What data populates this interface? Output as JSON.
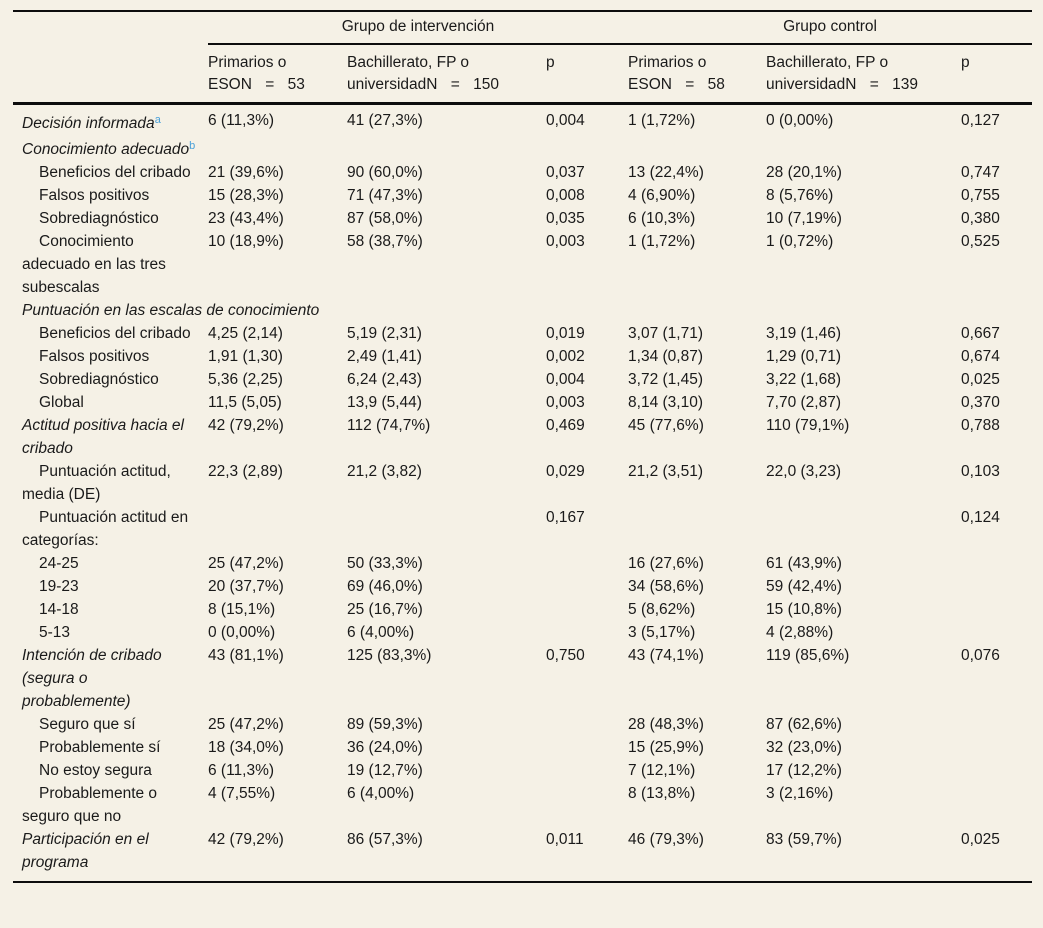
{
  "table": {
    "groups": [
      {
        "title": "Grupo de intervención"
      },
      {
        "title": "Grupo control"
      }
    ],
    "columns": [
      {
        "line1": "Primarios o",
        "line2": "ESON = 53"
      },
      {
        "line1": "Bachillerato, FP o",
        "line2": "universidadN = 150"
      },
      {
        "label": "p"
      },
      {
        "line1": "Primarios o",
        "line2": "ESON = 58"
      },
      {
        "line1": "Bachillerato, FP o",
        "line2": "universidadN = 139"
      },
      {
        "label": "p"
      }
    ],
    "rows": [
      {
        "label": "Decisión informada",
        "sup": "a",
        "italic": true,
        "indent": false,
        "span": false,
        "cells": [
          "6 (11,3%)",
          "41 (27,3%)",
          "0,004",
          "1 (1,72%)",
          "0 (0,00%)",
          "0,127"
        ]
      },
      {
        "label": "Conocimiento adecuado",
        "sup": "b",
        "italic": true,
        "indent": false,
        "span": false,
        "cells": [
          "",
          "",
          "",
          "",
          "",
          ""
        ]
      },
      {
        "label": "Beneficios del cribado",
        "italic": false,
        "indent": true,
        "span": false,
        "cells": [
          "21 (39,6%)",
          "90 (60,0%)",
          "0,037",
          "13 (22,4%)",
          "28 (20,1%)",
          "0,747"
        ]
      },
      {
        "label": "Falsos positivos",
        "italic": false,
        "indent": true,
        "span": false,
        "cells": [
          "15 (28,3%)",
          "71 (47,3%)",
          "0,008",
          "4 (6,90%)",
          "8 (5,76%)",
          "0,755"
        ]
      },
      {
        "label": "Sobrediagnóstico",
        "italic": false,
        "indent": true,
        "span": false,
        "cells": [
          "23 (43,4%)",
          "87 (58,0%)",
          "0,035",
          "6 (10,3%)",
          "10 (7,19%)",
          "0,380"
        ]
      },
      {
        "label": "Conocimiento adecuado en las tres subescalas",
        "italic": false,
        "indent": true,
        "span": false,
        "cells": [
          "10 (18,9%)",
          "58 (38,7%)",
          "0,003",
          "1 (1,72%)",
          "1 (0,72%)",
          "0,525"
        ]
      },
      {
        "label": "Puntuación en las escalas de conocimiento",
        "italic": true,
        "indent": false,
        "span": true,
        "cells": [
          "",
          "",
          "",
          "",
          "",
          ""
        ]
      },
      {
        "label": "Beneficios del cribado",
        "italic": false,
        "indent": true,
        "span": false,
        "cells": [
          "4,25 (2,14)",
          "5,19 (2,31)",
          "0,019",
          "3,07 (1,71)",
          "3,19 (1,46)",
          "0,667"
        ]
      },
      {
        "label": "Falsos positivos",
        "italic": false,
        "indent": true,
        "span": false,
        "cells": [
          "1,91 (1,30)",
          "2,49 (1,41)",
          "0,002",
          "1,34 (0,87)",
          "1,29 (0,71)",
          "0,674"
        ]
      },
      {
        "label": "Sobrediagnóstico",
        "italic": false,
        "indent": true,
        "span": false,
        "cells": [
          "5,36 (2,25)",
          "6,24 (2,43)",
          "0,004",
          "3,72 (1,45)",
          "3,22 (1,68)",
          "0,025"
        ]
      },
      {
        "label": "Global",
        "italic": false,
        "indent": true,
        "span": false,
        "cells": [
          "11,5 (5,05)",
          "13,9 (5,44)",
          "0,003",
          "8,14 (3,10)",
          "7,70 (2,87)",
          "0,370"
        ]
      },
      {
        "label": "Actitud positiva hacia el cribado",
        "italic": true,
        "indent": false,
        "span": false,
        "cells": [
          "42 (79,2%)",
          "112 (74,7%)",
          "0,469",
          "45 (77,6%)",
          "110 (79,1%)",
          "0,788"
        ]
      },
      {
        "label": "Puntuación actitud, media (DE)",
        "italic": false,
        "indent": true,
        "span": false,
        "cells": [
          "22,3 (2,89)",
          "21,2 (3,82)",
          "0,029",
          "21,2 (3,51)",
          "22,0 (3,23)",
          "0,103"
        ]
      },
      {
        "label": "Puntuación actitud en categorías:",
        "italic": false,
        "indent": true,
        "span": false,
        "cells": [
          "",
          "",
          "0,167",
          "",
          "",
          "0,124"
        ]
      },
      {
        "label": "24-25",
        "italic": false,
        "indent": true,
        "span": false,
        "cells": [
          "25 (47,2%)",
          "50 (33,3%)",
          "",
          "16 (27,6%)",
          "61 (43,9%)",
          ""
        ]
      },
      {
        "label": "19-23",
        "italic": false,
        "indent": true,
        "span": false,
        "cells": [
          "20 (37,7%)",
          "69 (46,0%)",
          "",
          "34 (58,6%)",
          "59 (42,4%)",
          ""
        ]
      },
      {
        "label": "14-18",
        "italic": false,
        "indent": true,
        "span": false,
        "cells": [
          "8 (15,1%)",
          "25 (16,7%)",
          "",
          "5 (8,62%)",
          "15 (10,8%)",
          ""
        ]
      },
      {
        "label": "5-13",
        "italic": false,
        "indent": true,
        "span": false,
        "cells": [
          "0 (0,00%)",
          "6 (4,00%)",
          "",
          "3 (5,17%)",
          "4 (2,88%)",
          ""
        ]
      },
      {
        "label": "Intención de cribado (segura o probablemente)",
        "italic": true,
        "indent": false,
        "span": false,
        "cells": [
          "43 (81,1%)",
          "125 (83,3%)",
          "0,750",
          "43 (74,1%)",
          "119 (85,6%)",
          "0,076"
        ]
      },
      {
        "label": "Seguro que sí",
        "italic": false,
        "indent": true,
        "span": false,
        "cells": [
          "25 (47,2%)",
          "89 (59,3%)",
          "",
          "28 (48,3%)",
          "87 (62,6%)",
          ""
        ]
      },
      {
        "label": "Probablemente sí",
        "italic": false,
        "indent": true,
        "span": false,
        "cells": [
          "18 (34,0%)",
          "36 (24,0%)",
          "",
          "15 (25,9%)",
          "32 (23,0%)",
          ""
        ]
      },
      {
        "label": "No estoy segura",
        "italic": false,
        "indent": true,
        "span": false,
        "cells": [
          "6 (11,3%)",
          "19 (12,7%)",
          "",
          "7 (12,1%)",
          "17 (12,2%)",
          ""
        ]
      },
      {
        "label": "Probablemente o seguro que no",
        "italic": false,
        "indent": true,
        "span": false,
        "cells": [
          "4 (7,55%)",
          "6 (4,00%)",
          "",
          "8 (13,8%)",
          "3 (2,16%)",
          ""
        ]
      },
      {
        "label": "Participación en el programa",
        "italic": true,
        "indent": false,
        "span": false,
        "cells": [
          "42 (79,2%)",
          "86 (57,3%)",
          "0,011",
          "46 (79,3%)",
          "83 (59,7%)",
          "0,025"
        ]
      }
    ]
  },
  "colors": {
    "background": "#f5f1e6",
    "text": "#1a1a1a",
    "rule": "#0d0d0d",
    "footnote_link": "#4ba1d9"
  }
}
